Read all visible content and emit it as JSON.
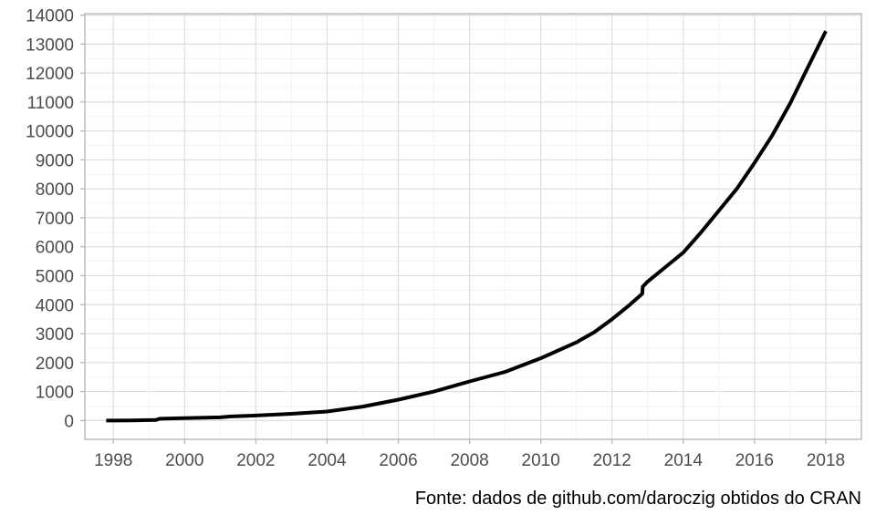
{
  "chart_data": {
    "type": "line",
    "title": "",
    "xlabel": "",
    "ylabel": "",
    "caption": "Fonte: dados de github.com/daroczig obtidos do CRAN",
    "xlim": [
      1997.2,
      2019.0
    ],
    "ylim": [
      -650,
      14050
    ],
    "x_ticks": [
      1998,
      2000,
      2002,
      2004,
      2006,
      2008,
      2010,
      2012,
      2014,
      2016,
      2018
    ],
    "x_tick_labels": [
      "1998",
      "2000",
      "2002",
      "2004",
      "2006",
      "2008",
      "2010",
      "2012",
      "2014",
      "2016",
      "2018"
    ],
    "y_ticks": [
      0,
      1000,
      2000,
      3000,
      4000,
      5000,
      6000,
      7000,
      8000,
      9000,
      10000,
      11000,
      12000,
      13000,
      14000
    ],
    "y_tick_labels": [
      "0",
      "1000",
      "2000",
      "3000",
      "4000",
      "5000",
      "6000",
      "7000",
      "8000",
      "9000",
      "10000",
      "11000",
      "12000",
      "13000",
      "14000"
    ],
    "grid": true,
    "legend": false,
    "series": [
      {
        "color": "#000000",
        "x": [
          1997.8,
          1998.5,
          1999.2,
          1999.3,
          2000.0,
          2001.0,
          2001.3,
          2002.0,
          2003.0,
          2004.0,
          2005.0,
          2006.0,
          2007.0,
          2008.0,
          2009.0,
          2010.0,
          2011.0,
          2011.5,
          2012.0,
          2012.5,
          2012.85,
          2012.86,
          2013.0,
          2013.5,
          2014.0,
          2014.5,
          2015.0,
          2015.5,
          2016.0,
          2016.5,
          2017.0,
          2017.5,
          2018.0
        ],
        "y": [
          0,
          5,
          20,
          60,
          80,
          110,
          140,
          170,
          230,
          310,
          480,
          720,
          1000,
          1350,
          1680,
          2150,
          2700,
          3050,
          3500,
          4000,
          4380,
          4620,
          4800,
          5300,
          5800,
          6500,
          7250,
          8000,
          8900,
          9850,
          10950,
          12200,
          13450
        ]
      }
    ]
  }
}
